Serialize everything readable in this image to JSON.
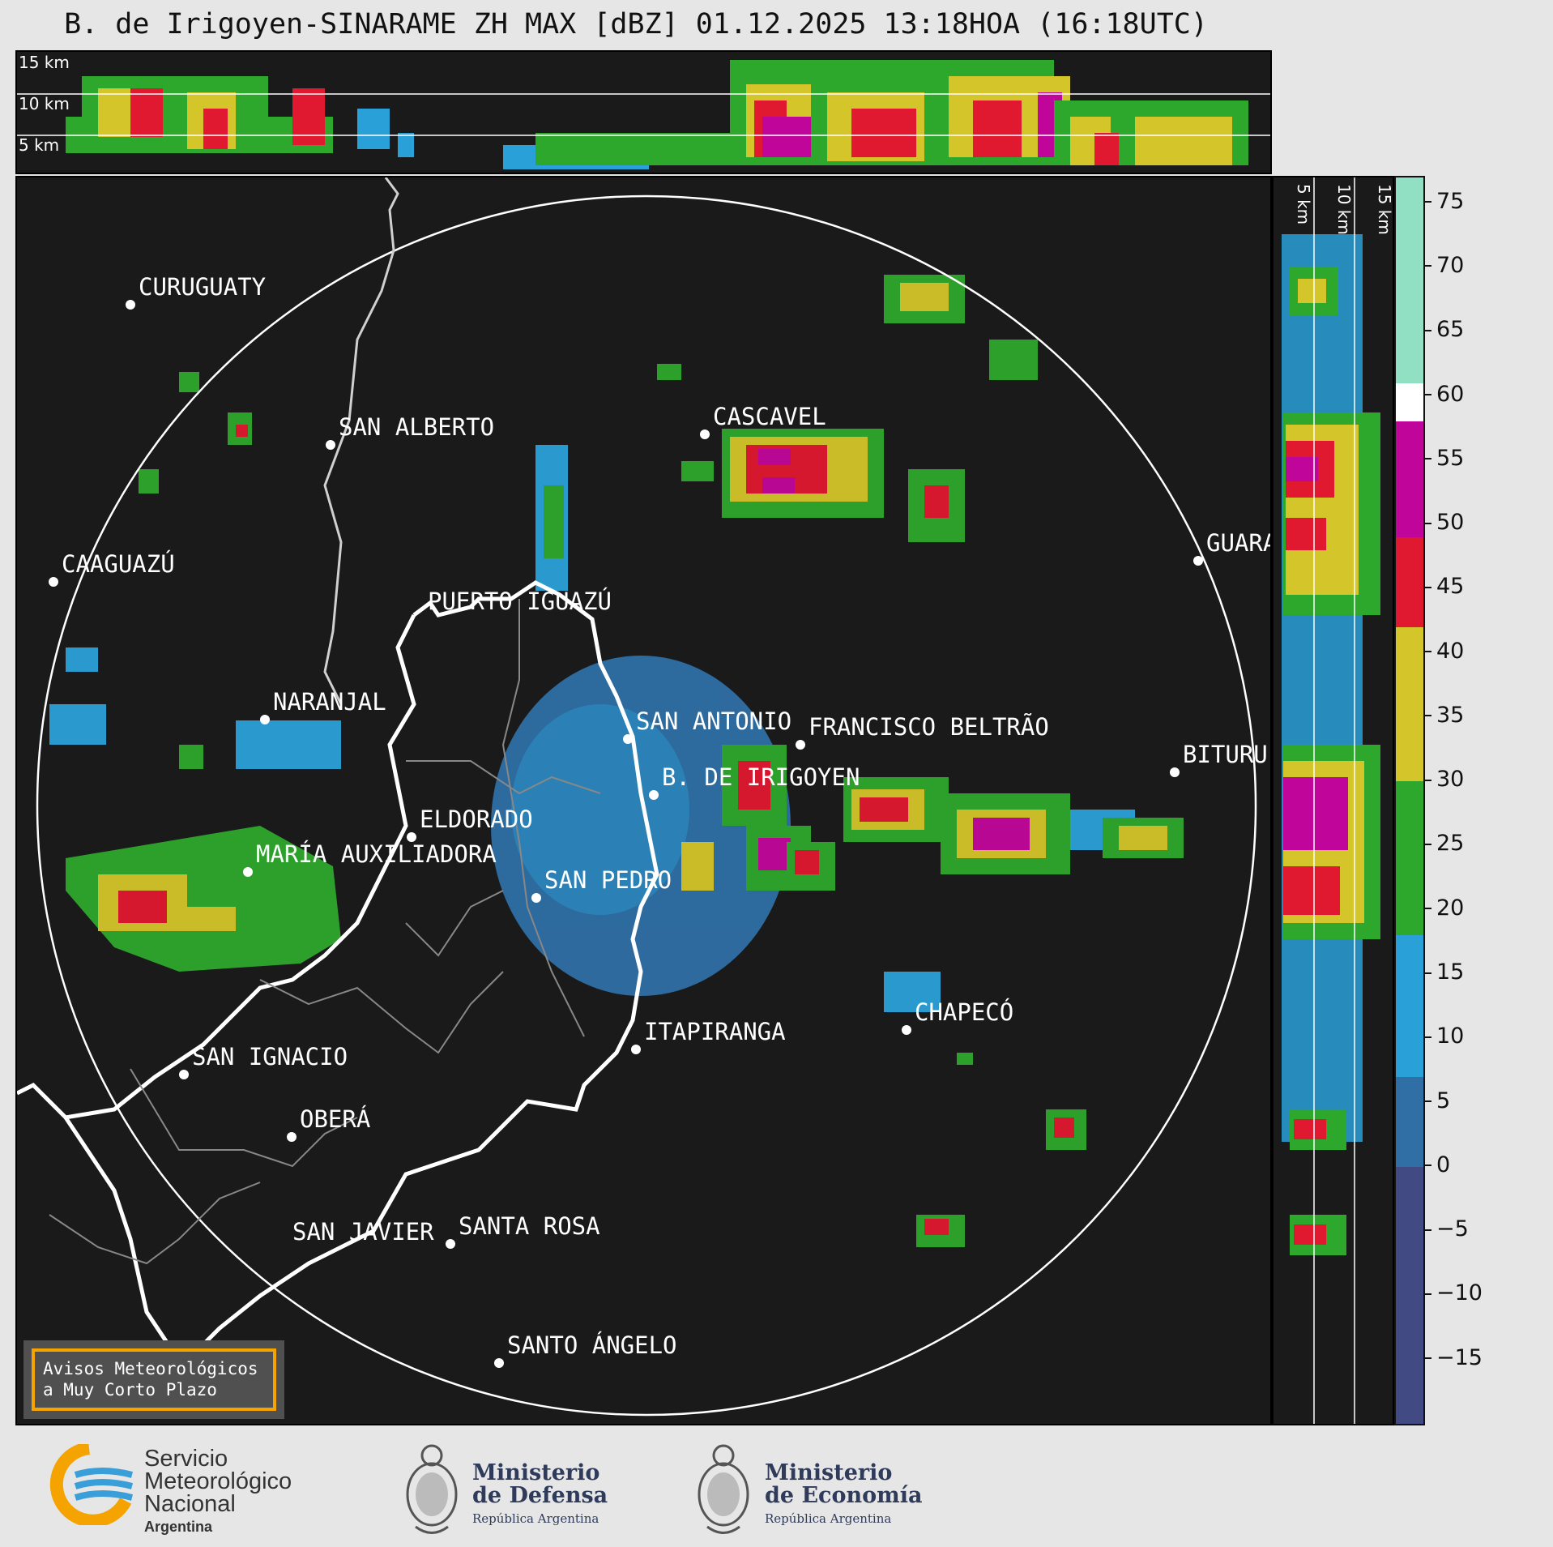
{
  "title": "B. de Irigoyen-SINARAME ZH MAX [dBZ] 01.12.2025 13:18HOA (16:18UTC)",
  "top_section": {
    "height_labels": [
      "15 km",
      "10 km",
      "5 km"
    ]
  },
  "side_section": {
    "height_labels": [
      "5 km",
      "10 km",
      "15 km"
    ]
  },
  "colorbar": {
    "unit": "dBZ",
    "range": [
      -20,
      77
    ],
    "ticks": [
      "75",
      "70",
      "65",
      "60",
      "55",
      "50",
      "45",
      "40",
      "35",
      "30",
      "25",
      "20",
      "15",
      "10",
      "5",
      "0",
      "−5",
      "−10",
      "−15"
    ],
    "colors": [
      {
        "min": -20,
        "max": 0,
        "color": "#414a82"
      },
      {
        "min": 0,
        "max": 7,
        "color": "#2f6fa5"
      },
      {
        "min": 7,
        "max": 18,
        "color": "#2aa0d8"
      },
      {
        "min": 18,
        "max": 30,
        "color": "#2ea82c"
      },
      {
        "min": 30,
        "max": 42,
        "color": "#d4c52a"
      },
      {
        "min": 42,
        "max": 49,
        "color": "#e01830"
      },
      {
        "min": 49,
        "max": 58,
        "color": "#c0069a"
      },
      {
        "min": 58,
        "max": 61,
        "color": "#ffffff"
      },
      {
        "min": 61,
        "max": 77,
        "color": "#92e0c4"
      }
    ]
  },
  "map": {
    "cities": [
      {
        "name": "CURUGUATY"
      },
      {
        "name": "SAN ALBERTO"
      },
      {
        "name": "CAAGUAZÚ"
      },
      {
        "name": "CASCAVEL"
      },
      {
        "name": "GUARA"
      },
      {
        "name": "PUERTO IGUAZÚ"
      },
      {
        "name": "NARANJAL"
      },
      {
        "name": "SAN ANTONIO"
      },
      {
        "name": "FRANCISCO BELTRÃO"
      },
      {
        "name": "BITURU"
      },
      {
        "name": "B. DE IRIGOYEN"
      },
      {
        "name": "ELDORADO"
      },
      {
        "name": "MARÍA AUXILIADORA"
      },
      {
        "name": "SAN PEDRO"
      },
      {
        "name": "ITAPIRANGA"
      },
      {
        "name": "CHAPECÓ"
      },
      {
        "name": "SAN IGNACIO"
      },
      {
        "name": "OBERÁ"
      },
      {
        "name": "SAN JAVIER"
      },
      {
        "name": "SANTA ROSA"
      },
      {
        "name": "SANTO ÁNGELO"
      }
    ]
  },
  "notice": {
    "line1": "Avisos Meteorológicos",
    "line2": "a Muy Corto Plazo"
  },
  "logos": {
    "smn": {
      "line1": "Servicio",
      "line2": "Meteorológico",
      "line3": "Nacional",
      "line4": "Argentina"
    },
    "defensa": {
      "line1": "Ministerio",
      "line2": "de Defensa",
      "line3": "República Argentina"
    },
    "economia": {
      "line1": "Ministerio",
      "line2": "de Economía",
      "line3": "República Argentina"
    }
  }
}
